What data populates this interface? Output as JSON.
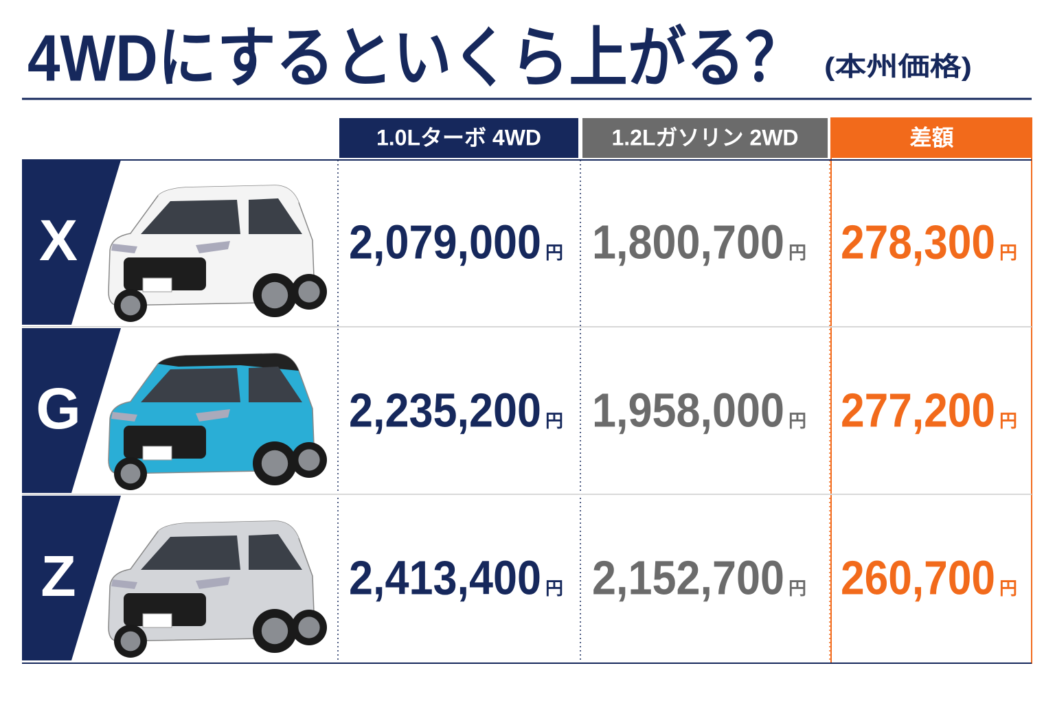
{
  "header": {
    "title": "4WDにするといくら上がる？",
    "note": "(本州価格)"
  },
  "table": {
    "columns": [
      "1.0Lターボ 4WD",
      "1.2Lガソリン 2WD",
      "差額"
    ],
    "unit": "円",
    "rows": [
      {
        "grade": "X",
        "values": [
          "2,079,000",
          "1,800,700",
          "278,300"
        ]
      },
      {
        "grade": "G",
        "values": [
          "2,235,200",
          "1,958,000",
          "277,200"
        ]
      },
      {
        "grade": "Z",
        "values": [
          "2,413,400",
          "2,152,700",
          "260,700"
        ]
      }
    ]
  }
}
